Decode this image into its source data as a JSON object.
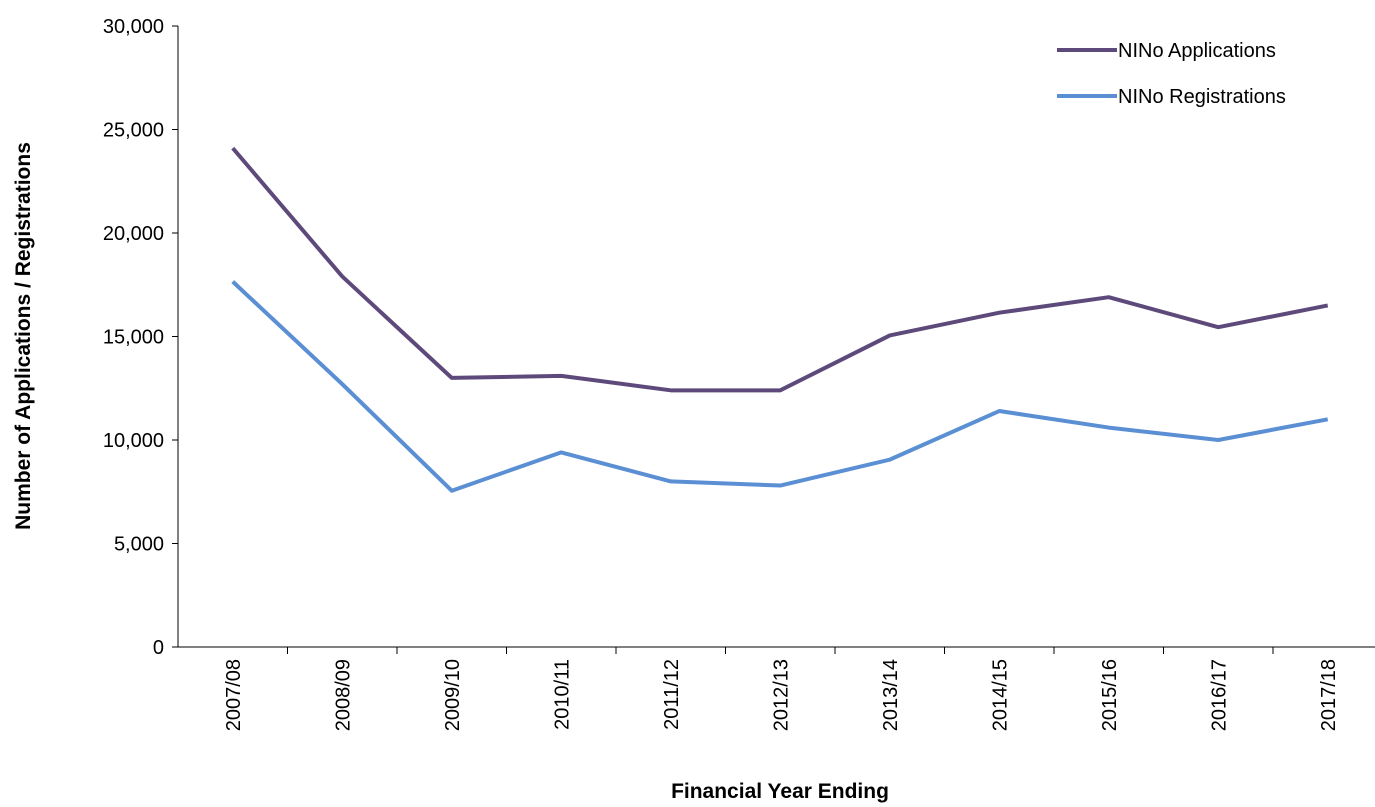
{
  "chart_data": {
    "type": "line",
    "x_label": "Financial Year Ending",
    "y_label": "Number of Applications / Registrations",
    "categories": [
      "2007/08",
      "2008/09",
      "2009/10",
      "2010/11",
      "2011/12",
      "2012/13",
      "2013/14",
      "2014/15",
      "2015/16",
      "2016/17",
      "2017/18"
    ],
    "series": [
      {
        "name": "NINo Applications",
        "color": "#5e4a7a",
        "values": [
          24100,
          17900,
          13000,
          13100,
          12400,
          12400,
          15050,
          16150,
          16900,
          15450,
          16500
        ]
      },
      {
        "name": "NINo Registrations",
        "color": "#5b8fd4",
        "values": [
          17650,
          12700,
          7550,
          9400,
          8000,
          7800,
          9050,
          11400,
          10600,
          10000,
          11000
        ]
      }
    ],
    "ylim": [
      0,
      30000
    ],
    "yticks": [
      {
        "value": 0,
        "label": "0"
      },
      {
        "value": 5000,
        "label": "5,000"
      },
      {
        "value": 10000,
        "label": "10,000"
      },
      {
        "value": 15000,
        "label": "15,000"
      },
      {
        "value": 20000,
        "label": "20,000"
      },
      {
        "value": 25000,
        "label": "25,000"
      },
      {
        "value": 30000,
        "label": "30,000"
      }
    ],
    "legend": "top-right",
    "grid": false
  }
}
